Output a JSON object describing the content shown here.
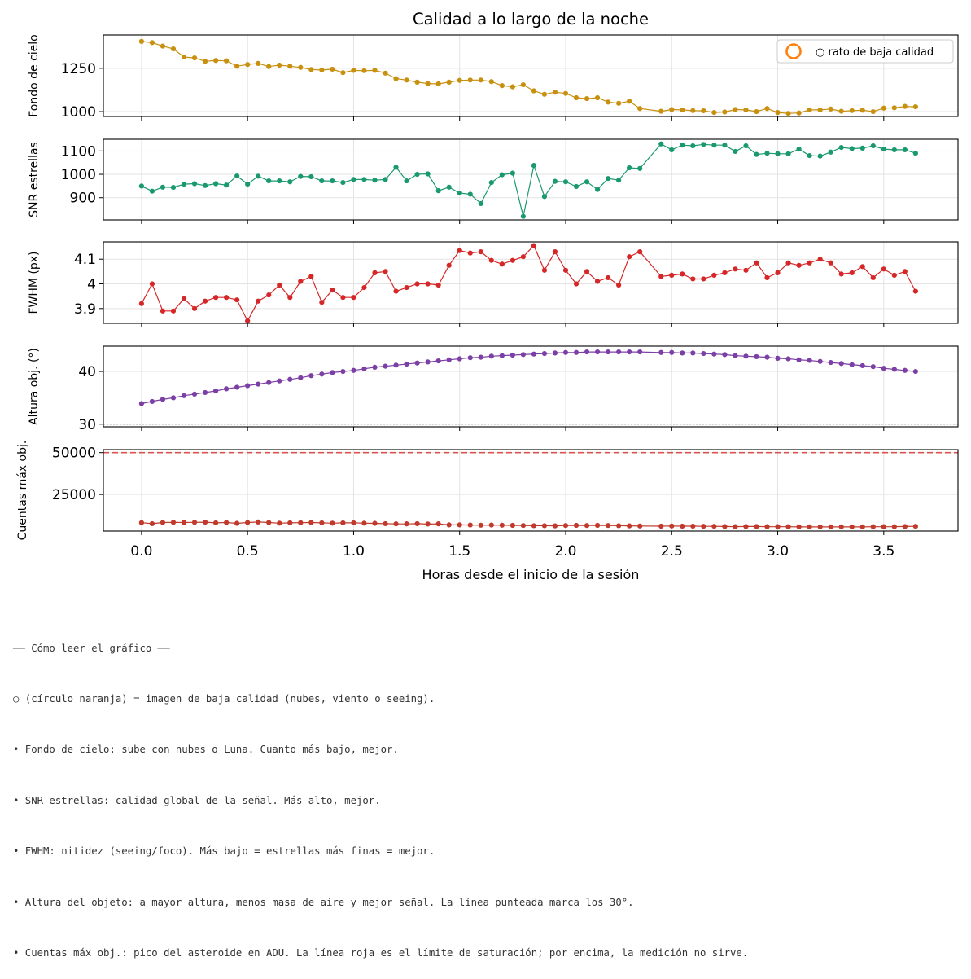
{
  "chart_data": {
    "type": "line",
    "title": "Calidad a lo largo de la noche",
    "xlabel": "Horas desde el inicio de la sesión",
    "xlim": [
      -0.18,
      3.85
    ],
    "xticks": [
      0.0,
      0.5,
      1.0,
      1.5,
      2.0,
      2.5,
      3.0,
      3.5
    ],
    "xtick_labels": [
      "0.0",
      "0.5",
      "1.0",
      "1.5",
      "2.0",
      "2.5",
      "3.0",
      "3.5"
    ],
    "grid": true,
    "legend": {
      "placement": "top-right",
      "entries": [
        "○ rato de baja calidad"
      ],
      "marker_color": "#ff7f0e"
    },
    "x": [
      0.0,
      0.05,
      0.1,
      0.15,
      0.2,
      0.25,
      0.3,
      0.35,
      0.4,
      0.45,
      0.5,
      0.55,
      0.6,
      0.65,
      0.7,
      0.75,
      0.8,
      0.85,
      0.9,
      0.95,
      1.0,
      1.05,
      1.1,
      1.15,
      1.2,
      1.25,
      1.3,
      1.35,
      1.4,
      1.45,
      1.5,
      1.55,
      1.6,
      1.65,
      1.7,
      1.75,
      1.8,
      1.85,
      1.9,
      1.95,
      2.0,
      2.05,
      2.1,
      2.15,
      2.2,
      2.25,
      2.3,
      2.35,
      2.45,
      2.5,
      2.55,
      2.6,
      2.65,
      2.7,
      2.75,
      2.8,
      2.85,
      2.9,
      2.95,
      3.0,
      3.05,
      3.1,
      3.15,
      3.2,
      3.25,
      3.3,
      3.35,
      3.4,
      3.45,
      3.5,
      3.55,
      3.6,
      3.65
    ],
    "series": [
      {
        "ylabel": "Fondo de cielo",
        "color": "#c8900f",
        "ylim": [
          972,
          1442
        ],
        "yticks": [
          1000,
          1250
        ],
        "values": [
          1405,
          1398,
          1378,
          1362,
          1315,
          1310,
          1290,
          1295,
          1293,
          1262,
          1272,
          1278,
          1260,
          1268,
          1262,
          1255,
          1243,
          1240,
          1245,
          1225,
          1238,
          1236,
          1238,
          1222,
          1190,
          1182,
          1170,
          1162,
          1160,
          1170,
          1180,
          1182,
          1182,
          1173,
          1150,
          1143,
          1155,
          1120,
          1100,
          1112,
          1105,
          1080,
          1075,
          1080,
          1055,
          1048,
          1060,
          1018,
          1002,
          1012,
          1010,
          1006,
          1005,
          995,
          998,
          1012,
          1010,
          1000,
          1018,
          995,
          990,
          992,
          1010,
          1010,
          1015,
          1002,
          1006,
          1008,
          1000,
          1020,
          1022,
          1030,
          1028
        ],
        "lines": []
      },
      {
        "ylabel": "SNR estrellas",
        "color": "#1a9970",
        "ylim": [
          805,
          1150
        ],
        "yticks": [
          900,
          1000,
          1100
        ],
        "values": [
          950,
          928,
          945,
          944,
          958,
          960,
          952,
          960,
          954,
          993,
          958,
          992,
          972,
          972,
          968,
          991,
          990,
          972,
          972,
          965,
          978,
          978,
          975,
          978,
          1030,
          972,
          1000,
          1002,
          930,
          945,
          920,
          915,
          875,
          965,
          998,
          1005,
          820,
          1038,
          905,
          970,
          968,
          948,
          968,
          935,
          982,
          975,
          1028,
          1025,
          1130,
          1105,
          1125,
          1122,
          1128,
          1125,
          1125,
          1098,
          1122,
          1085,
          1090,
          1088,
          1088,
          1108,
          1080,
          1078,
          1095,
          1115,
          1110,
          1112,
          1122,
          1108,
          1105,
          1105,
          1090
        ],
        "lines": []
      },
      {
        "ylabel": "FWHM (px)",
        "color": "#d62728",
        "ylim": [
          3.84,
          4.17
        ],
        "yticks": [
          3.9,
          4.0,
          4.1
        ],
        "values": [
          3.92,
          4.0,
          3.89,
          3.89,
          3.94,
          3.9,
          3.93,
          3.945,
          3.945,
          3.935,
          3.85,
          3.93,
          3.955,
          3.995,
          3.945,
          4.01,
          4.03,
          3.925,
          3.975,
          3.945,
          3.945,
          3.985,
          4.045,
          4.05,
          3.97,
          3.985,
          4.0,
          4.0,
          3.995,
          4.075,
          4.135,
          4.125,
          4.13,
          4.095,
          4.08,
          4.095,
          4.11,
          4.155,
          4.055,
          4.13,
          4.055,
          4.0,
          4.05,
          4.01,
          4.025,
          3.995,
          4.11,
          4.13,
          4.03,
          4.035,
          4.04,
          4.02,
          4.02,
          4.035,
          4.045,
          4.06,
          4.055,
          4.085,
          4.025,
          4.045,
          4.085,
          4.075,
          4.085,
          4.1,
          4.085,
          4.04,
          4.045,
          4.07,
          4.025,
          4.06,
          4.035,
          4.05,
          3.97
        ],
        "lines": []
      },
      {
        "ylabel": "Altura obj. (°)",
        "color": "#7b3fa5",
        "ylim": [
          29.5,
          44.8
        ],
        "yticks": [
          30,
          40
        ],
        "values": [
          33.9,
          34.3,
          34.7,
          35.0,
          35.4,
          35.7,
          36.0,
          36.3,
          36.7,
          37.0,
          37.3,
          37.6,
          37.9,
          38.2,
          38.5,
          38.8,
          39.2,
          39.5,
          39.8,
          40.0,
          40.2,
          40.5,
          40.8,
          41.0,
          41.2,
          41.4,
          41.6,
          41.8,
          42.0,
          42.2,
          42.4,
          42.6,
          42.7,
          42.9,
          43.0,
          43.1,
          43.2,
          43.3,
          43.4,
          43.5,
          43.6,
          43.6,
          43.7,
          43.7,
          43.7,
          43.7,
          43.7,
          43.7,
          43.6,
          43.6,
          43.5,
          43.5,
          43.4,
          43.3,
          43.2,
          43.0,
          42.9,
          42.8,
          42.7,
          42.5,
          42.4,
          42.2,
          42.1,
          41.9,
          41.7,
          41.5,
          41.3,
          41.1,
          40.9,
          40.6,
          40.4,
          40.2,
          40.0
        ],
        "lines": [
          {
            "y": 30,
            "style": "dotted",
            "color": "#999999"
          }
        ]
      },
      {
        "ylabel": "Cuentas máx obj.",
        "color": "#c0392b",
        "ylim": [
          3200,
          51800
        ],
        "yticks": [
          25000,
          50000
        ],
        "values": [
          8200,
          7600,
          8300,
          8400,
          8300,
          8400,
          8500,
          8100,
          8300,
          7800,
          8300,
          8600,
          8300,
          7900,
          8100,
          8200,
          8300,
          8100,
          7900,
          8100,
          8100,
          7900,
          7800,
          7600,
          7500,
          7500,
          7600,
          7400,
          7500,
          6900,
          6900,
          6800,
          6700,
          6800,
          6700,
          6600,
          6500,
          6400,
          6400,
          6300,
          6500,
          6600,
          6500,
          6600,
          6500,
          6400,
          6300,
          6200,
          6100,
          6200,
          6100,
          6100,
          6000,
          6000,
          5900,
          5800,
          5900,
          5900,
          5800,
          5800,
          5800,
          5700,
          5700,
          5700,
          5700,
          5700,
          5700,
          5700,
          5800,
          5800,
          5800,
          5900,
          6000
        ],
        "lines": [
          {
            "y": 50000,
            "style": "dashed",
            "color": "#d9534f"
          }
        ]
      }
    ]
  },
  "notes": [
    "── Cómo leer el gráfico ──",
    "○ (círculo naranja) = imagen de baja calidad (nubes, viento o seeing).",
    "• Fondo de cielo: sube con nubes o Luna. Cuanto más bajo, mejor.",
    "• SNR estrellas: calidad global de la señal. Más alto, mejor.",
    "• FWHM: nitidez (seeing/foco). Más bajo = estrellas más finas = mejor.",
    "• Altura del objeto: a mayor altura, menos masa de aire y mejor señal. La línea punteada marca los 30°.",
    "• Cuentas máx obj.: pico del asteroide en ADU. La línea roja es el límite de saturación; por encima, la medición no sirve."
  ]
}
